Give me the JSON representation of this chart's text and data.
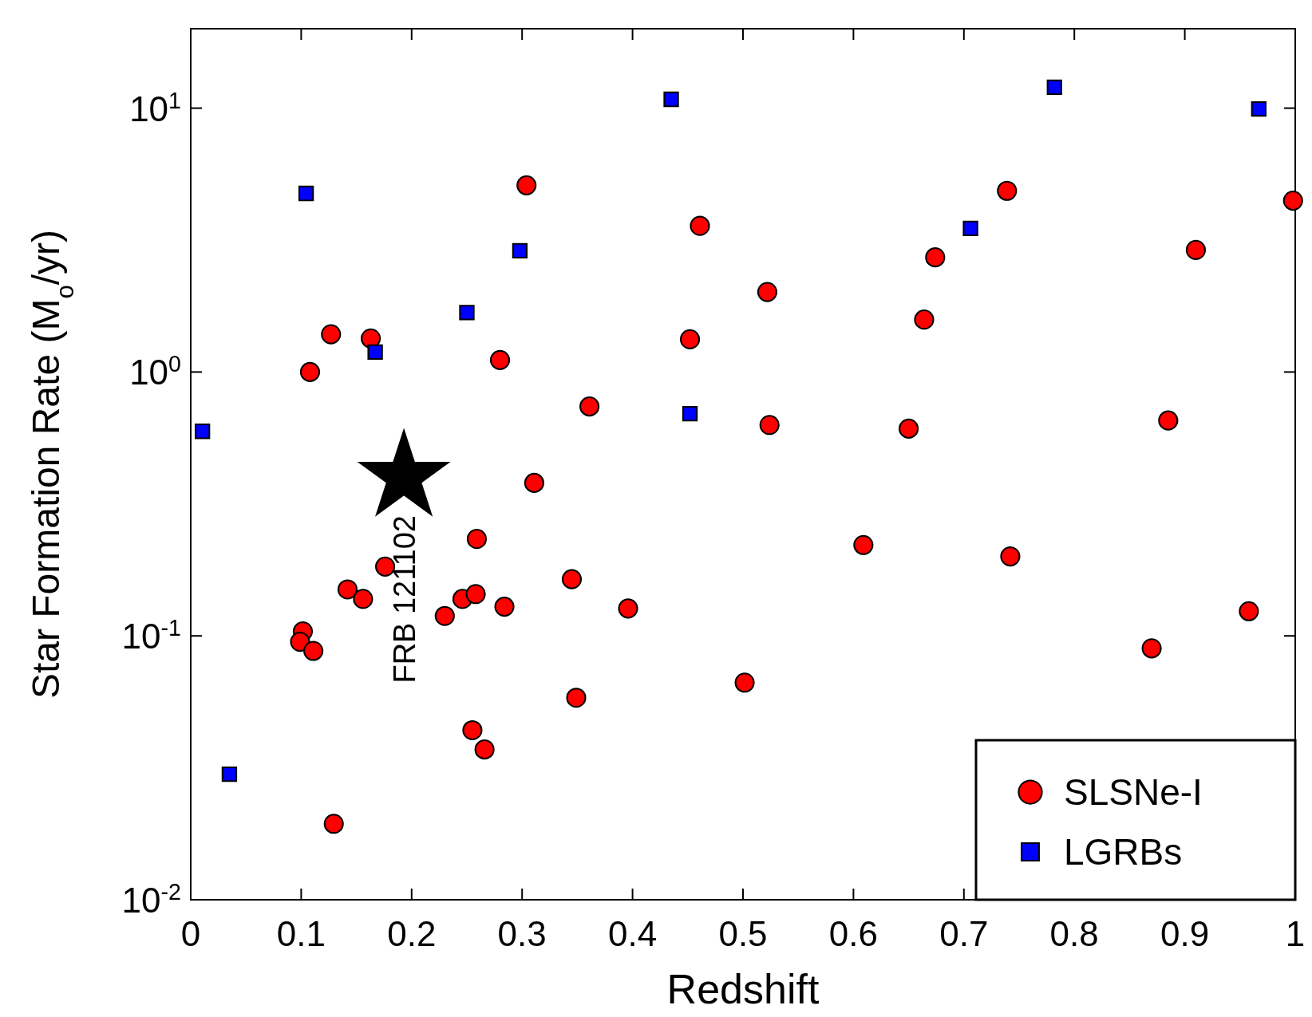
{
  "chart_data": {
    "type": "scatter",
    "xlabel": "Redshift",
    "ylabel": "Star Formation Rate  (M$_{o}$/yr)",
    "log": "y",
    "xlim": [
      0,
      1
    ],
    "ylim": [
      0.01,
      20
    ],
    "xticks": [
      0,
      0.1,
      0.2,
      0.3,
      0.4,
      0.5,
      0.6,
      0.7,
      0.8,
      0.9,
      1
    ],
    "yticks": [
      {
        "value": 0.01,
        "label": "10$^{-2}$"
      },
      {
        "value": 0.1,
        "label": "10$^{-1}$"
      },
      {
        "value": 1,
        "label": "10$^{0}$"
      },
      {
        "value": 10,
        "label": "10$^{1}$"
      }
    ],
    "grid": false,
    "legend": "bottom right",
    "series": [
      {
        "name": "SLSNe-I",
        "color": "#ff0000",
        "marker": "circle",
        "x": [
          0.108,
          0.127,
          0.163,
          0.304,
          0.28,
          0.361,
          0.311,
          0.259,
          0.176,
          0.142,
          0.156,
          0.1015,
          0.099,
          0.111,
          0.1295,
          0.23,
          0.246,
          0.258,
          0.284,
          0.345,
          0.396,
          0.349,
          0.255,
          0.266,
          0.461,
          0.452,
          0.522,
          0.524,
          0.5015,
          0.609,
          0.65,
          0.664,
          0.674,
          0.739,
          0.742,
          0.91,
          0.885,
          0.87,
          0.958,
          0.998
        ],
        "values": [
          1.0,
          1.39,
          1.34,
          5.1,
          1.11,
          0.74,
          0.38,
          0.233,
          0.183,
          0.15,
          0.138,
          0.104,
          0.095,
          0.0877,
          0.0194,
          0.119,
          0.138,
          0.144,
          0.129,
          0.164,
          0.127,
          0.0583,
          0.0439,
          0.0371,
          3.58,
          1.33,
          2.01,
          0.63,
          0.0665,
          0.221,
          0.61,
          1.58,
          2.72,
          4.86,
          0.2,
          2.9,
          0.655,
          0.0897,
          0.124,
          4.46
        ]
      },
      {
        "name": "LGRBs",
        "color": "#0000ff",
        "marker": "square",
        "x": [
          0.0106,
          0.035,
          0.1045,
          0.167,
          0.25,
          0.298,
          0.435,
          0.452,
          0.706,
          0.782,
          0.967
        ],
        "values": [
          0.596,
          0.0299,
          4.75,
          1.19,
          1.68,
          2.88,
          10.8,
          0.695,
          3.5,
          12.0,
          9.93
        ]
      },
      {
        "color": "#000000",
        "marker": "star",
        "x": [
          0.193
        ],
        "values": [
          0.4
        ]
      }
    ],
    "annotations": [
      "FRB 121102"
    ]
  }
}
